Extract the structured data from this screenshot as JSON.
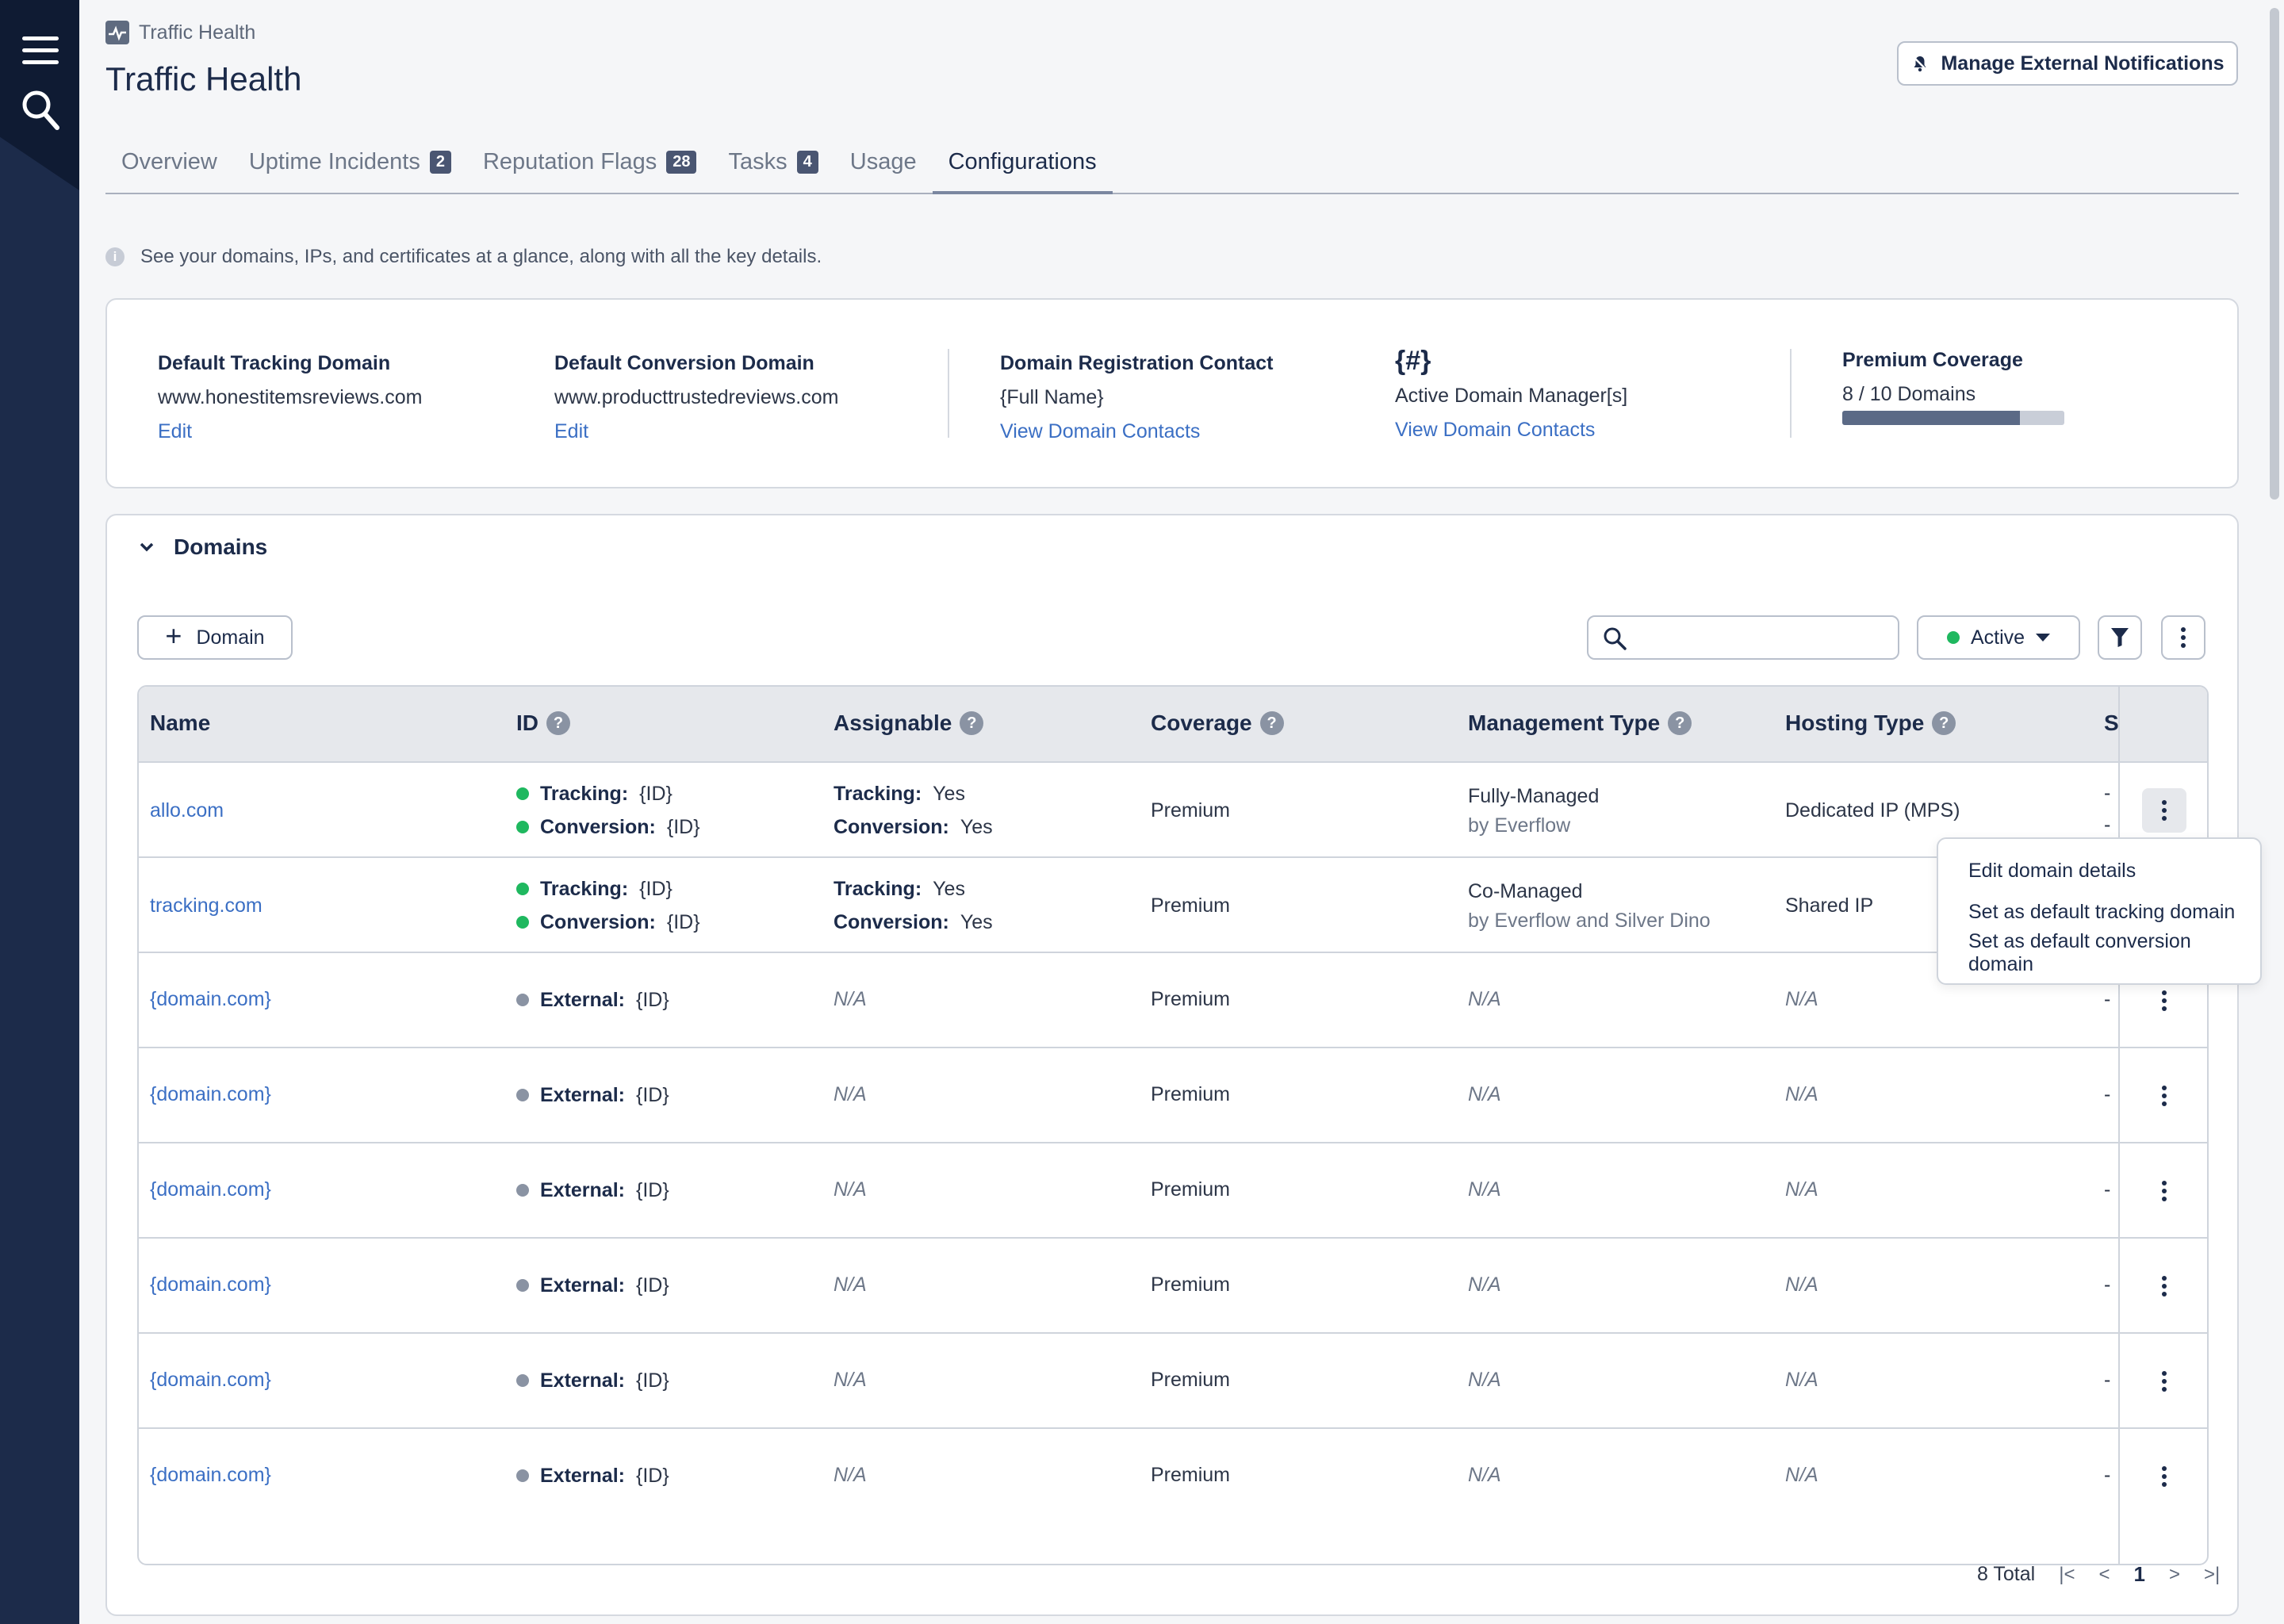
{
  "rail": {
    "menu_icon": "hamburger-icon",
    "search_icon": "search-icon"
  },
  "header": {
    "breadcrumb": "Traffic Health",
    "title": "Traffic Health",
    "external_button": "Manage External Notifications"
  },
  "tabs": [
    {
      "label": "Overview",
      "badge": ""
    },
    {
      "label": "Uptime Incidents",
      "badge": "2"
    },
    {
      "label": "Reputation Flags",
      "badge": "28"
    },
    {
      "label": "Tasks",
      "badge": "4"
    },
    {
      "label": "Usage",
      "badge": ""
    },
    {
      "label": "Configurations",
      "badge": "",
      "active": true
    }
  ],
  "info_text": "See your domains, IPs, and certificates at a glance, along with all the key details.",
  "summary": {
    "tracking": {
      "label": "Default Tracking Domain",
      "value": "www.honestitemsreviews.com",
      "link": "Edit"
    },
    "conversion": {
      "label": "Default Conversion Domain",
      "value": "www.producttrustedreviews.com",
      "link": "Edit"
    },
    "contact": {
      "label": "Domain Registration Contact",
      "value": "{Full Name}",
      "link": "View Domain Contacts"
    },
    "managers": {
      "label": "{#}",
      "value": "Active Domain Manager[s]",
      "link": "View Domain Contacts"
    },
    "coverage": {
      "label": "Premium Coverage",
      "value": "8 / 10 Domains",
      "used": 8,
      "total": 10
    }
  },
  "domains": {
    "section_title": "Domains",
    "add_button": "Domain",
    "search_placeholder": "",
    "status_filter": "Active",
    "columns": [
      "Name",
      "ID",
      "Assignable",
      "Coverage",
      "Management Type",
      "Hosting Type",
      "S"
    ],
    "rows": [
      {
        "name": "allo.com",
        "ids": [
          {
            "label": "Tracking:",
            "value": "{ID}",
            "status": "green"
          },
          {
            "label": "Conversion:",
            "value": "{ID}",
            "status": "green"
          }
        ],
        "assign": [
          {
            "label": "Tracking:",
            "value": "Yes"
          },
          {
            "label": "Conversion:",
            "value": "Yes"
          }
        ],
        "coverage": "Premium",
        "mgmt": "Fully-Managed",
        "mgmt_sub": "by Everflow",
        "hosting": "Dedicated IP (MPS)",
        "status_col": [
          "-",
          "-"
        ]
      },
      {
        "name": "tracking.com",
        "ids": [
          {
            "label": "Tracking:",
            "value": "{ID}",
            "status": "green"
          },
          {
            "label": "Conversion:",
            "value": "{ID}",
            "status": "green"
          }
        ],
        "assign": [
          {
            "label": "Tracking:",
            "value": "Yes"
          },
          {
            "label": "Conversion:",
            "value": "Yes"
          }
        ],
        "coverage": "Premium",
        "mgmt": "Co-Managed",
        "mgmt_sub": "by Everflow and Silver Dino",
        "hosting": "Shared IP",
        "status_col": []
      },
      {
        "name": "{domain.com}",
        "ids": [
          {
            "label": "External:",
            "value": "{ID}",
            "status": "gray"
          }
        ],
        "assign_na": "N/A",
        "coverage": "Premium",
        "mgmt_na": "N/A",
        "hosting_na": "N/A",
        "status_col": [
          "-"
        ]
      },
      {
        "name": "{domain.com}",
        "ids": [
          {
            "label": "External:",
            "value": "{ID}",
            "status": "gray"
          }
        ],
        "assign_na": "N/A",
        "coverage": "Premium",
        "mgmt_na": "N/A",
        "hosting_na": "N/A",
        "status_col": [
          "-"
        ]
      },
      {
        "name": "{domain.com}",
        "ids": [
          {
            "label": "External:",
            "value": "{ID}",
            "status": "gray"
          }
        ],
        "assign_na": "N/A",
        "coverage": "Premium",
        "mgmt_na": "N/A",
        "hosting_na": "N/A",
        "status_col": [
          "-"
        ]
      },
      {
        "name": "{domain.com}",
        "ids": [
          {
            "label": "External:",
            "value": "{ID}",
            "status": "gray"
          }
        ],
        "assign_na": "N/A",
        "coverage": "Premium",
        "mgmt_na": "N/A",
        "hosting_na": "N/A",
        "status_col": [
          "-"
        ]
      },
      {
        "name": "{domain.com}",
        "ids": [
          {
            "label": "External:",
            "value": "{ID}",
            "status": "gray"
          }
        ],
        "assign_na": "N/A",
        "coverage": "Premium",
        "mgmt_na": "N/A",
        "hosting_na": "N/A",
        "status_col": [
          "-"
        ]
      },
      {
        "name": "{domain.com}",
        "ids": [
          {
            "label": "External:",
            "value": "{ID}",
            "status": "gray"
          }
        ],
        "assign_na": "N/A",
        "coverage": "Premium",
        "mgmt_na": "N/A",
        "hosting_na": "N/A",
        "status_col": [
          "-"
        ]
      }
    ],
    "row_menu": [
      "Edit domain details",
      "Set as default tracking domain",
      "Set as default conversion domain"
    ],
    "pagination": {
      "total": "8 Total",
      "page": "1"
    }
  },
  "colors": {
    "rail": "#1c2b4a",
    "link": "#3b6fc4",
    "active_dot": "#1fb85f",
    "external_dot": "#8a93a3"
  }
}
